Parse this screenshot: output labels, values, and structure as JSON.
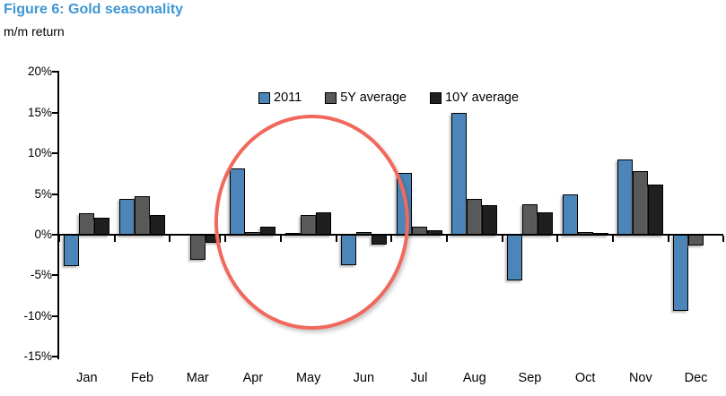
{
  "header": {
    "title": "Figure 6: Gold seasonality",
    "subtitle": "m/m return"
  },
  "colors": {
    "title_text": "#3E96D3",
    "series_2011": "#4C86B8",
    "series_5y": "#595959",
    "series_10y": "#1F1F1F",
    "annotation_ellipse": "#F1685C",
    "axis": "#000000"
  },
  "chart_data": {
    "type": "bar",
    "title": "Figure 6: Gold seasonality",
    "subtitle": "m/m return",
    "unit": "percent m/m return",
    "categories": [
      "Jan",
      "Feb",
      "Mar",
      "Apr",
      "May",
      "Jun",
      "Jul",
      "Aug",
      "Sep",
      "Oct",
      "Nov",
      "Dec"
    ],
    "series": [
      {
        "name": "2011",
        "color": "#4C86B8",
        "values": [
          -3.7,
          4.4,
          0.0,
          8.2,
          0.2,
          -3.6,
          7.6,
          15.0,
          -5.5,
          5.0,
          9.3,
          -9.3
        ]
      },
      {
        "name": "5Y average",
        "color": "#595959",
        "values": [
          2.6,
          4.7,
          -3.0,
          0.3,
          2.4,
          0.3,
          1.0,
          4.4,
          3.7,
          0.3,
          7.8,
          -1.2
        ]
      },
      {
        "name": "10Y average",
        "color": "#1F1F1F",
        "values": [
          2.1,
          2.4,
          -0.9,
          1.0,
          2.7,
          -1.1,
          0.5,
          3.6,
          2.8,
          0.2,
          6.2,
          0.0
        ]
      }
    ],
    "y_axis": {
      "ticks": [
        "20%",
        "15%",
        "10%",
        "5%",
        "0%",
        "-5%",
        "-10%",
        "-15%"
      ],
      "tick_values": [
        20,
        15,
        10,
        5,
        0,
        -5,
        -10,
        -15
      ],
      "ylim": [
        -15,
        20
      ]
    },
    "xlabel": "",
    "ylabel": "",
    "grid": false,
    "legend_position": "top-center",
    "annotation": {
      "shape": "ellipse",
      "color": "#F1685C",
      "months_circled": [
        "Apr",
        "May",
        "Jun"
      ]
    }
  }
}
